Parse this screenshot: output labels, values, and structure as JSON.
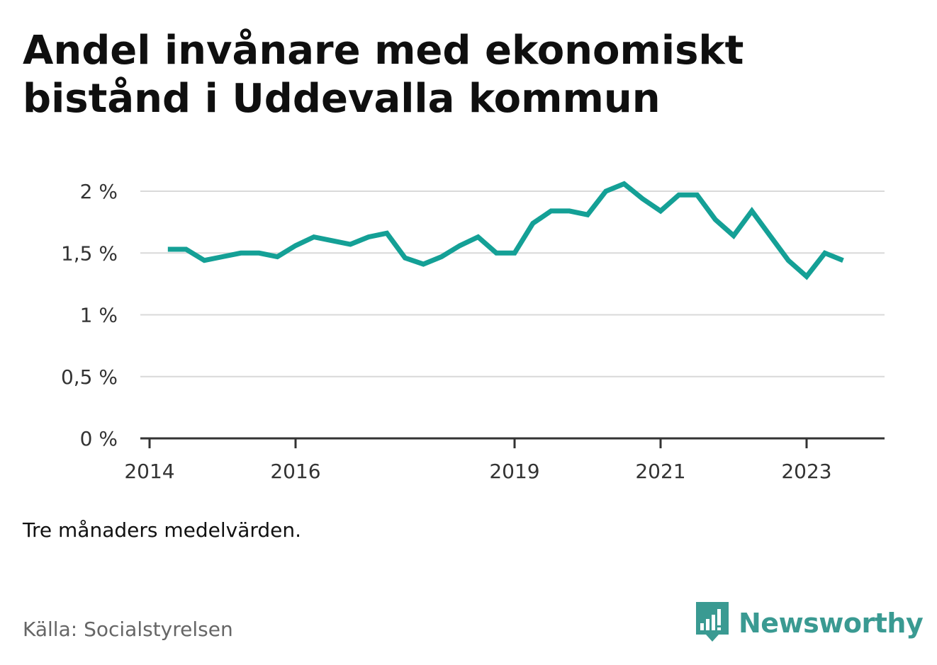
{
  "title": "Andel invånare med ekonomiskt bistånd i Uddevalla kommun",
  "note": "Tre månaders medelvärden.",
  "source": "Källa: Socialstyrelsen",
  "brand": {
    "name": "Newsworthy",
    "color": "#3a9a92",
    "icon": "bar-chart-icon"
  },
  "chart_data": {
    "type": "line",
    "line_color": "#14a096",
    "grid": true,
    "y_ticks": [
      "0 %",
      "0,5 %",
      "1 %",
      "1,5 %",
      "2 %"
    ],
    "y_tick_values": [
      0,
      0.5,
      1,
      1.5,
      2
    ],
    "ylim": [
      0,
      2
    ],
    "x_ticks": [
      "2014",
      "2016",
      "2019",
      "2021",
      "2023"
    ],
    "x_tick_values": [
      2014.0,
      2016.0,
      2019.0,
      2021.0,
      2023.0
    ],
    "xlim": [
      2013.875,
      2024.25
    ],
    "series": [
      {
        "x": [
          2014.25,
          2014.5,
          2014.75,
          2015.0,
          2015.25,
          2015.5,
          2015.75,
          2016.0,
          2016.25,
          2016.5,
          2016.75,
          2017.0,
          2017.25,
          2017.5,
          2017.75,
          2018.0,
          2018.25,
          2018.5,
          2018.75,
          2019.0,
          2019.25,
          2019.5,
          2019.75,
          2020.0,
          2020.25,
          2020.5,
          2020.75,
          2021.0,
          2021.25,
          2021.5,
          2021.75,
          2022.0,
          2022.25,
          2022.5,
          2022.75,
          2023.0,
          2023.25,
          2023.5
        ],
        "values": [
          1.53,
          1.53,
          1.44,
          1.47,
          1.5,
          1.5,
          1.47,
          1.56,
          1.63,
          1.6,
          1.57,
          1.63,
          1.66,
          1.46,
          1.41,
          1.47,
          1.56,
          1.63,
          1.5,
          1.5,
          1.74,
          1.84,
          1.84,
          1.81,
          2.0,
          2.06,
          1.94,
          1.84,
          1.97,
          1.97,
          1.77,
          1.64,
          1.84,
          1.64,
          1.44,
          1.31,
          1.5,
          1.44
        ]
      }
    ]
  }
}
